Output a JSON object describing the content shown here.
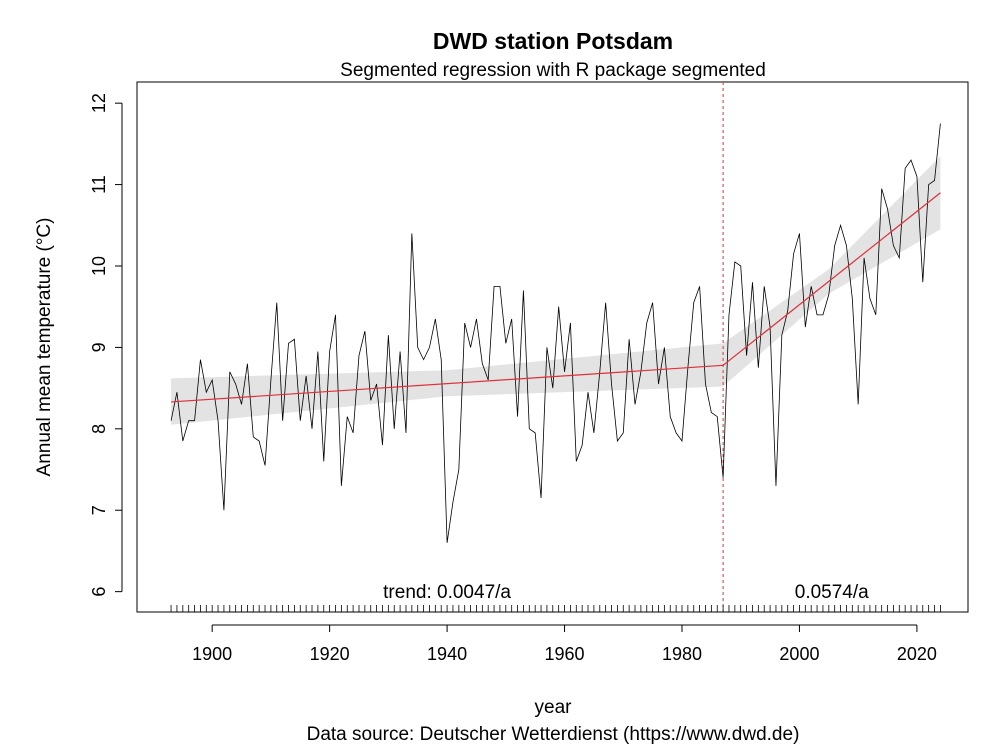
{
  "chart_data": {
    "type": "line",
    "title": "DWD station Potsdam",
    "subtitle": "Segmented regression with R package segmented",
    "x_label": "year",
    "y_label": "Annual mean temperature (°C)",
    "caption": "Data source: Deutscher Wetterdienst (https://www.dwd.de)",
    "x": [
      1893,
      1894,
      1895,
      1896,
      1897,
      1898,
      1899,
      1900,
      1901,
      1902,
      1903,
      1904,
      1905,
      1906,
      1907,
      1908,
      1909,
      1910,
      1911,
      1912,
      1913,
      1914,
      1915,
      1916,
      1917,
      1918,
      1919,
      1920,
      1921,
      1922,
      1923,
      1924,
      1925,
      1926,
      1927,
      1928,
      1929,
      1930,
      1931,
      1932,
      1933,
      1934,
      1935,
      1936,
      1937,
      1938,
      1939,
      1940,
      1941,
      1942,
      1943,
      1944,
      1945,
      1946,
      1947,
      1948,
      1949,
      1950,
      1951,
      1952,
      1953,
      1954,
      1955,
      1956,
      1957,
      1958,
      1959,
      1960,
      1961,
      1962,
      1963,
      1964,
      1965,
      1966,
      1967,
      1968,
      1969,
      1970,
      1971,
      1972,
      1973,
      1974,
      1975,
      1976,
      1977,
      1978,
      1979,
      1980,
      1981,
      1982,
      1983,
      1984,
      1985,
      1986,
      1987,
      1988,
      1989,
      1990,
      1991,
      1992,
      1993,
      1994,
      1995,
      1996,
      1997,
      1998,
      1999,
      2000,
      2001,
      2002,
      2003,
      2004,
      2005,
      2006,
      2007,
      2008,
      2009,
      2010,
      2011,
      2012,
      2013,
      2014,
      2015,
      2016,
      2017,
      2018,
      2019,
      2020,
      2021,
      2022,
      2023,
      2024
    ],
    "series": [
      {
        "color": "#000000",
        "values": [
          8.1,
          8.45,
          7.85,
          8.1,
          8.1,
          8.85,
          8.45,
          8.6,
          8.1,
          7.0,
          8.7,
          8.55,
          8.3,
          8.8,
          7.9,
          7.85,
          7.55,
          8.6,
          9.55,
          8.1,
          9.05,
          9.1,
          8.1,
          8.65,
          8.0,
          8.95,
          7.6,
          8.95,
          9.4,
          7.3,
          8.15,
          7.95,
          8.9,
          9.2,
          8.35,
          8.55,
          7.8,
          9.15,
          8.0,
          8.95,
          7.95,
          10.4,
          9.0,
          8.85,
          9.0,
          9.35,
          8.85,
          6.6,
          7.1,
          7.5,
          9.3,
          9.0,
          9.35,
          8.8,
          8.6,
          9.75,
          9.75,
          9.05,
          9.35,
          8.15,
          9.7,
          8.0,
          7.95,
          7.15,
          9.0,
          8.5,
          9.5,
          8.7,
          9.3,
          7.6,
          7.8,
          8.45,
          7.95,
          8.7,
          9.55,
          8.55,
          7.85,
          7.95,
          9.1,
          8.3,
          8.7,
          9.3,
          9.55,
          8.55,
          9.0,
          8.15,
          7.95,
          7.85,
          8.75,
          9.55,
          9.75,
          8.55,
          8.2,
          8.15,
          7.4,
          9.4,
          10.05,
          10.0,
          8.9,
          9.8,
          8.75,
          9.75,
          9.25,
          7.3,
          9.15,
          9.45,
          10.15,
          10.4,
          9.25,
          9.75,
          9.4,
          9.4,
          9.65,
          10.25,
          10.5,
          10.25,
          9.6,
          8.3,
          10.1,
          9.6,
          9.4,
          10.95,
          10.7,
          10.25,
          10.1,
          11.2,
          11.3,
          11.1,
          9.8,
          11.0,
          11.05,
          11.75
        ]
      }
    ],
    "fit": {
      "color": "#e0303a",
      "x": [
        1893,
        1987,
        2024
      ],
      "values": [
        8.33,
        8.78,
        10.9
      ]
    },
    "band": {
      "color": "#e3e3e3",
      "x": [
        1893,
        1940,
        1987,
        2005,
        2024
      ],
      "lower": [
        8.05,
        8.4,
        8.52,
        9.66,
        10.45
      ],
      "upper": [
        8.62,
        8.72,
        9.05,
        9.96,
        11.35
      ]
    },
    "breakpoint": {
      "value": 1987,
      "color": "#e0303a"
    },
    "annotations": [
      "trend: 0.0047/a",
      "0.0574/a"
    ],
    "xlim": [
      1887.2,
      2028.7
    ],
    "ylim": [
      5.75,
      12.26
    ],
    "xticks": [
      1900,
      1920,
      1940,
      1960,
      1980,
      2000,
      2020
    ],
    "yticks": [
      6,
      7,
      8,
      9,
      10,
      11,
      12
    ]
  }
}
